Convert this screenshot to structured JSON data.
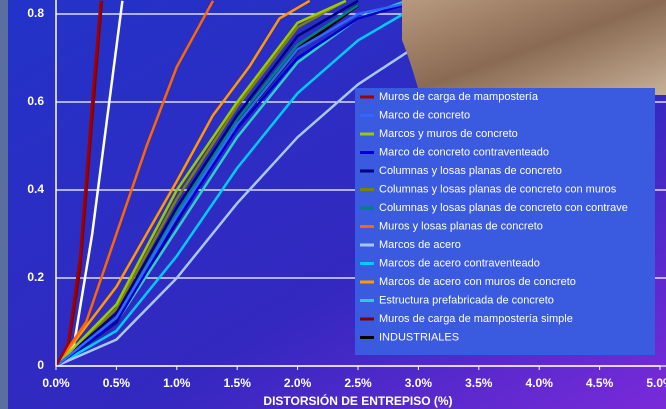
{
  "chart_data": {
    "type": "line",
    "x_label": "DISTORSIÓN DE ENTREPISO (%)",
    "xlim": [
      0,
      5
    ],
    "xticks": [
      {
        "value": 0,
        "label": "0.0%"
      },
      {
        "value": 0.5,
        "label": "0.5%"
      },
      {
        "value": 1,
        "label": "1.0%"
      },
      {
        "value": 1.5,
        "label": "1.5%"
      },
      {
        "value": 2,
        "label": "2.0%"
      },
      {
        "value": 2.5,
        "label": "2.5%"
      },
      {
        "value": 3,
        "label": "3.0%"
      },
      {
        "value": 3.5,
        "label": "3.5%"
      },
      {
        "value": 4,
        "label": "4.0%"
      },
      {
        "value": 4.5,
        "label": "4.5%"
      },
      {
        "value": 5,
        "label": "5.0%"
      }
    ],
    "ylim": [
      0,
      0.83
    ],
    "yticks": [
      0,
      0.2,
      0.4,
      0.6,
      0.8
    ],
    "grid": true,
    "series": [
      {
        "name": "Muros de carga de mampostería",
        "color": "#a00000",
        "x": [
          0,
          0.1,
          0.2,
          0.3,
          0.37
        ],
        "values": [
          0,
          0.05,
          0.25,
          0.6,
          0.83
        ]
      },
      {
        "name": "Marco de concreto",
        "color": "#3366ff",
        "x": [
          0,
          0.5,
          1,
          1.5,
          2,
          2.5,
          3
        ],
        "values": [
          0,
          0.11,
          0.34,
          0.55,
          0.72,
          0.8,
          0.83
        ]
      },
      {
        "name": "Marcos y muros de concreto",
        "color": "#99cc00",
        "x": [
          0,
          0.5,
          1,
          1.5,
          2,
          2.4
        ],
        "values": [
          0,
          0.14,
          0.4,
          0.6,
          0.78,
          0.83
        ]
      },
      {
        "name": "Marco de concreto contraventeado",
        "color": "#0000cc",
        "x": [
          0,
          0.5,
          1,
          1.5,
          2,
          2.5,
          3
        ],
        "values": [
          0,
          0.1,
          0.33,
          0.54,
          0.7,
          0.79,
          0.83
        ]
      },
      {
        "name": "Columnas y losas planas de concreto",
        "color": "#000080",
        "x": [
          0,
          0.5,
          1,
          1.5,
          2,
          2.5
        ],
        "values": [
          0,
          0.12,
          0.36,
          0.57,
          0.75,
          0.83
        ]
      },
      {
        "name": "Columnas y losas planas de concreto con muros",
        "color": "#808000",
        "x": [
          0,
          0.5,
          1,
          1.5,
          2,
          2.4
        ],
        "values": [
          0,
          0.13,
          0.38,
          0.59,
          0.77,
          0.83
        ]
      },
      {
        "name": "Columnas y losas planas de concreto con contrave",
        "color": "#008080",
        "x": [
          0,
          0.5,
          1,
          1.5,
          2,
          2.5
        ],
        "values": [
          0,
          0.11,
          0.35,
          0.56,
          0.73,
          0.82
        ]
      },
      {
        "name": "Muros y losas planas de concreto",
        "color": "#ff6600",
        "x": [
          0,
          0.25,
          0.5,
          0.75,
          1,
          1.3
        ],
        "values": [
          0,
          0.1,
          0.3,
          0.5,
          0.68,
          0.83
        ]
      },
      {
        "name": "Marcos de acero",
        "color": "#a6c8ff",
        "x": [
          0,
          0.5,
          1,
          1.5,
          2,
          2.5,
          3,
          3.5
        ],
        "values": [
          0,
          0.06,
          0.2,
          0.37,
          0.52,
          0.64,
          0.73,
          0.79
        ]
      },
      {
        "name": "Marcos de acero contraventeado",
        "color": "#00ccff",
        "x": [
          0,
          0.5,
          1,
          1.5,
          2,
          2.5,
          3
        ],
        "values": [
          0,
          0.08,
          0.25,
          0.45,
          0.62,
          0.74,
          0.82
        ]
      },
      {
        "name": "Marcos de acero con muros de concreto",
        "color": "#ff9900",
        "x": [
          0,
          0.5,
          1,
          1.3,
          1.6,
          1.85,
          2.1
        ],
        "values": [
          0,
          0.18,
          0.42,
          0.57,
          0.68,
          0.79,
          0.83
        ]
      },
      {
        "name": "Estructura prefabricada de concreto",
        "color": "#33cccc",
        "x": [
          0,
          0.5,
          1,
          1.5,
          2,
          2.5,
          2.9
        ],
        "values": [
          0,
          0.1,
          0.31,
          0.52,
          0.69,
          0.79,
          0.83
        ]
      },
      {
        "name": "Muros de carga de mampostería simple",
        "color": "#800000",
        "x": [
          0,
          0.1,
          0.2,
          0.3,
          0.38
        ],
        "values": [
          0,
          0.04,
          0.22,
          0.56,
          0.83
        ]
      },
      {
        "name": "INDUSTRIALES",
        "color": "#000000",
        "x": [
          0,
          0.5,
          1,
          1.5,
          2,
          2.5
        ],
        "values": [
          0,
          0.1,
          0.33,
          0.55,
          0.72,
          0.82
        ]
      },
      {
        "color": "#ffffff",
        "x": [
          0,
          0.15,
          0.3,
          0.45,
          0.55
        ],
        "values": [
          0,
          0.05,
          0.3,
          0.62,
          0.83
        ]
      }
    ]
  }
}
